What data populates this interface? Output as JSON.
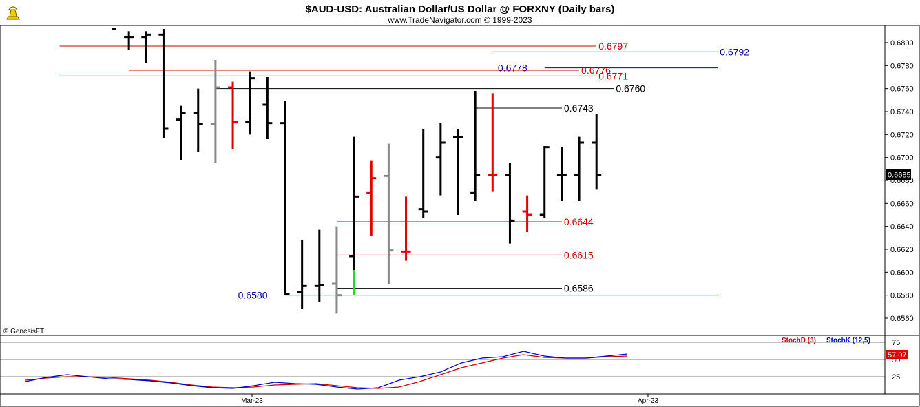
{
  "header": {
    "title": "$AUD-USD:  Australian Dollar/US Dollar @ FORXNY  (Daily bars)",
    "subtitle": "www.TradeNavigator.com © 1999-2023",
    "logo_icon": "trading-navigator-bull-logo-icon"
  },
  "footer": {
    "credit": "© GenesisFT"
  },
  "colors": {
    "up_bar": "#000000",
    "down_bar": "#e00000",
    "neutral_bar": "#888888",
    "signal_bar": "#22dd22",
    "resistance_line": "#cc0000",
    "support_line": "#0000aa",
    "stoch_d": "#cc0000",
    "stoch_k": "#0000cc"
  },
  "chart_data": [
    {
      "type": "ohlc",
      "title": "$AUD-USD:  Australian Dollar/US Dollar @ FORXNY  (Daily bars)",
      "ylim": [
        0.6545,
        0.6815
      ],
      "y_ticks": [
        "0.6800",
        "0.6780",
        "0.6760",
        "0.6740",
        "0.6720",
        "0.6700",
        "0.6680",
        "0.6660",
        "0.6640",
        "0.6620",
        "0.6600",
        "0.6580",
        "0.6560"
      ],
      "x_ticks": [
        "Mar-23",
        "Apr-23"
      ],
      "last_price": "0.6685",
      "bars": [
        {
          "h": 0.6812,
          "l": 0.6812,
          "c": 0.6812,
          "color": "up"
        },
        {
          "h": 0.681,
          "l": 0.6794,
          "o": 0.6805,
          "c": 0.6805,
          "color": "up"
        },
        {
          "h": 0.681,
          "l": 0.6782,
          "o": 0.6805,
          "c": 0.6807,
          "color": "up"
        },
        {
          "h": 0.6812,
          "l": 0.6717,
          "o": 0.6807,
          "c": 0.6725,
          "color": "up"
        },
        {
          "h": 0.6745,
          "l": 0.6698,
          "o": 0.6733,
          "c": 0.6739,
          "color": "up"
        },
        {
          "h": 0.676,
          "l": 0.6705,
          "o": 0.6739,
          "c": 0.6729,
          "color": "up"
        },
        {
          "h": 0.6785,
          "l": 0.6695,
          "o": 0.6729,
          "c": 0.6761,
          "color": "neutral"
        },
        {
          "h": 0.6766,
          "l": 0.6707,
          "o": 0.6761,
          "c": 0.6731,
          "color": "down"
        },
        {
          "h": 0.6775,
          "l": 0.672,
          "o": 0.6731,
          "c": 0.6769,
          "color": "up"
        },
        {
          "h": 0.677,
          "l": 0.6716,
          "o": 0.6746,
          "c": 0.673,
          "color": "up"
        },
        {
          "h": 0.6749,
          "l": 0.658,
          "o": 0.673,
          "c": 0.6581,
          "color": "up"
        },
        {
          "h": 0.6628,
          "l": 0.6568,
          "o": 0.6583,
          "c": 0.6588,
          "color": "up"
        },
        {
          "h": 0.6637,
          "l": 0.6574,
          "o": 0.6588,
          "c": 0.6589,
          "color": "up"
        },
        {
          "h": 0.664,
          "l": 0.6564,
          "o": 0.659,
          "c": 0.658,
          "color": "neutral"
        },
        {
          "h": 0.6718,
          "l": 0.658,
          "o": 0.6614,
          "c": 0.6666,
          "color": "up",
          "signal": [
            0.658,
            0.6602
          ]
        },
        {
          "h": 0.6697,
          "l": 0.6632,
          "o": 0.6669,
          "c": 0.6682,
          "color": "down"
        },
        {
          "h": 0.6712,
          "l": 0.659,
          "o": 0.6684,
          "c": 0.6619,
          "color": "neutral"
        },
        {
          "h": 0.6666,
          "l": 0.661,
          "o": 0.6618,
          "c": 0.6618,
          "color": "down"
        },
        {
          "h": 0.6725,
          "l": 0.6647,
          "o": 0.6655,
          "c": 0.6653,
          "color": "up"
        },
        {
          "h": 0.673,
          "l": 0.6667,
          "o": 0.67,
          "c": 0.6713,
          "color": "up"
        },
        {
          "h": 0.6725,
          "l": 0.665,
          "o": 0.6718,
          "c": 0.6718,
          "color": "up"
        },
        {
          "h": 0.6758,
          "l": 0.6662,
          "o": 0.6669,
          "c": 0.6685,
          "color": "up"
        },
        {
          "h": 0.6756,
          "l": 0.667,
          "o": 0.6685,
          "c": 0.6685,
          "color": "down"
        },
        {
          "h": 0.6695,
          "l": 0.6625,
          "o": 0.6685,
          "c": 0.6645,
          "color": "up"
        },
        {
          "h": 0.6667,
          "l": 0.6635,
          "o": 0.6653,
          "c": 0.665,
          "color": "down"
        },
        {
          "h": 0.671,
          "l": 0.6647,
          "o": 0.665,
          "c": 0.6709,
          "color": "up"
        },
        {
          "h": 0.6709,
          "l": 0.6662,
          "o": 0.6685,
          "c": 0.6685,
          "color": "up"
        },
        {
          "h": 0.6718,
          "l": 0.6662,
          "o": 0.6685,
          "c": 0.6713,
          "color": "up"
        },
        {
          "h": 0.6738,
          "l": 0.6672,
          "o": 0.6713,
          "c": 0.6685,
          "color": "up"
        }
      ],
      "levels": [
        {
          "value": 0.6797,
          "label": "0.6797",
          "color": "resistance",
          "from_bar": -3,
          "to_bar": 28,
          "label_side": "right"
        },
        {
          "value": 0.6792,
          "label": "0.6792",
          "color": "support",
          "from_bar": 22,
          "to_bar": 35,
          "label_side": "right"
        },
        {
          "value": 0.6778,
          "label": "0.6778",
          "color": "support",
          "from_bar": 25,
          "to_bar": 35,
          "label_side": "left"
        },
        {
          "value": 0.6776,
          "label": "0.6776",
          "color": "resistance",
          "from_bar": 1,
          "to_bar": 27,
          "label_side": "right"
        },
        {
          "value": 0.6771,
          "label": "0.6771",
          "color": "resistance",
          "from_bar": -3,
          "to_bar": 28,
          "label_side": "right"
        },
        {
          "value": 0.676,
          "label": "0.6760",
          "color": "up",
          "from_bar": 6,
          "to_bar": 29,
          "label_side": "right"
        },
        {
          "value": 0.6743,
          "label": "0.6743",
          "color": "up",
          "from_bar": 21,
          "to_bar": 26,
          "label_side": "right"
        },
        {
          "value": 0.6644,
          "label": "0.6644",
          "color": "resistance",
          "from_bar": 13,
          "to_bar": 26,
          "label_side": "right"
        },
        {
          "value": 0.6615,
          "label": "0.6615",
          "color": "resistance",
          "from_bar": 13,
          "to_bar": 26,
          "label_side": "right"
        },
        {
          "value": 0.6586,
          "label": "0.6586",
          "color": "up",
          "from_bar": 13,
          "to_bar": 26,
          "label_side": "right"
        },
        {
          "value": 0.658,
          "label": "0.6580",
          "color": "support",
          "from_bar": 10,
          "to_bar": 35,
          "label_side": "left"
        }
      ]
    },
    {
      "type": "line",
      "title": "",
      "legend": [
        "StochD (3)",
        "StochK (12,5)"
      ],
      "ylim": [
        0,
        85
      ],
      "y_ticks": [
        "75",
        "50",
        "25"
      ],
      "last_value": "57.07",
      "series": [
        {
          "name": "StochD (3)",
          "color": "stoch_d",
          "values": [
            20,
            23,
            25,
            25,
            24,
            22,
            20,
            17,
            13,
            10,
            9,
            10,
            13,
            14,
            15,
            12,
            9,
            8,
            10,
            18,
            28,
            38,
            45,
            52,
            57,
            53,
            52,
            52,
            54,
            55
          ]
        },
        {
          "name": "StochK (12,5)",
          "color": "stoch_k",
          "values": [
            18,
            24,
            28,
            25,
            22,
            21,
            19,
            16,
            12,
            9,
            8,
            12,
            17,
            15,
            14,
            10,
            7,
            9,
            20,
            25,
            32,
            45,
            52,
            54,
            62,
            55,
            52,
            52,
            55,
            58
          ]
        }
      ]
    }
  ]
}
